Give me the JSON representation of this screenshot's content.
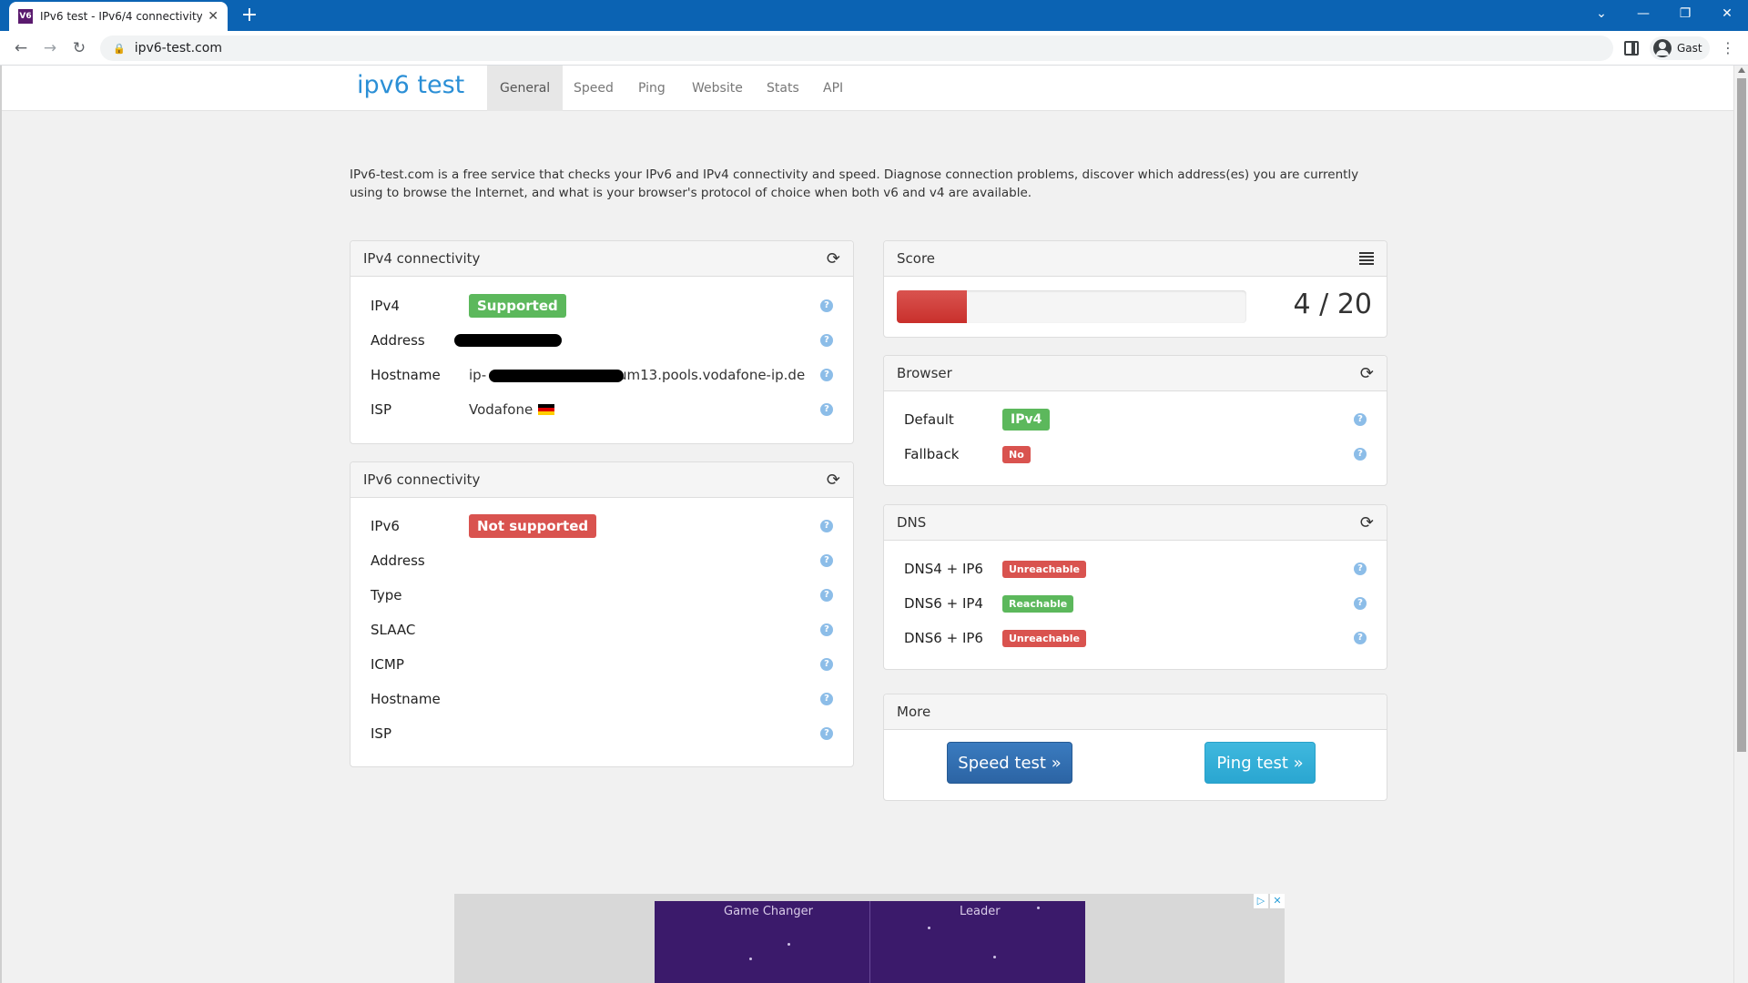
{
  "browser": {
    "tab_title": "IPv6 test - IPv6/4 connectivity an",
    "tab_favicon": "V6",
    "url": "ipv6-test.com",
    "profile_name": "Gast"
  },
  "site": {
    "logo_parts": [
      "ipv6",
      " ",
      "test"
    ],
    "nav": [
      "General",
      "Speed",
      "Ping",
      "Website",
      "Stats",
      "API"
    ],
    "active_nav": "General",
    "intro": "IPv6-test.com is a free service that checks your IPv6 and IPv4 connectivity and speed. Diagnose connection problems, discover which address(es) you are currently using to browse the Internet, and what is your browser's protocol of choice when both v6 and v4 are available."
  },
  "ipv4": {
    "title": "IPv4 connectivity",
    "rows": [
      {
        "label": "IPv4",
        "badge": "Supported"
      },
      {
        "label": "Address",
        "value": ""
      },
      {
        "label": "Hostname",
        "value": "ip-",
        "value_tail": "um13.pools.vodafone-ip.de"
      },
      {
        "label": "ISP",
        "value": "Vodafone"
      }
    ]
  },
  "ipv6": {
    "title": "IPv6 connectivity",
    "rows": [
      {
        "label": "IPv6",
        "badge": "Not supported"
      },
      {
        "label": "Address"
      },
      {
        "label": "Type"
      },
      {
        "label": "SLAAC"
      },
      {
        "label": "ICMP"
      },
      {
        "label": "Hostname"
      },
      {
        "label": "ISP"
      }
    ]
  },
  "score": {
    "title": "Score",
    "value": 4,
    "max": 20,
    "text": "4 / 20"
  },
  "browser_panel": {
    "title": "Browser",
    "rows": [
      {
        "label": "Default",
        "badge": "IPv4"
      },
      {
        "label": "Fallback",
        "badge": "No"
      }
    ]
  },
  "dns": {
    "title": "DNS",
    "rows": [
      {
        "label": "DNS4 + IP6",
        "badge": "Unreachable"
      },
      {
        "label": "DNS6 + IP4",
        "badge": "Reachable"
      },
      {
        "label": "DNS6 + IP6",
        "badge": "Unreachable"
      }
    ]
  },
  "more": {
    "title": "More",
    "speed_button": "Speed test »",
    "ping_button": "Ping test »"
  },
  "ad": {
    "left_label": "Game Changer",
    "right_label": "Leader",
    "badges": [
      "▷",
      "✕"
    ]
  },
  "colors": {
    "chrome_blue": "#0b63b3",
    "success": "#5cb85c",
    "danger": "#d9534f",
    "primary": "#2c64a4",
    "info": "#2aa6d1"
  }
}
